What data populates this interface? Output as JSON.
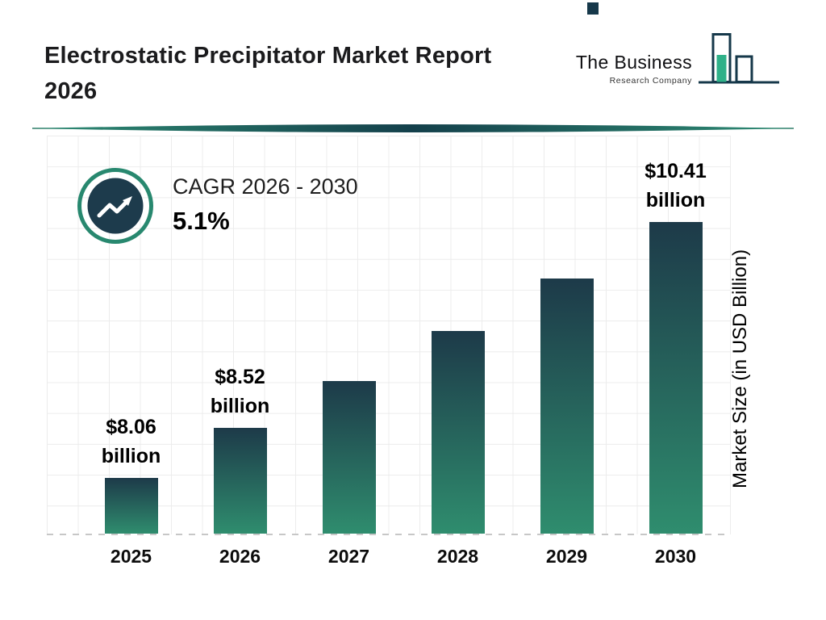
{
  "page": {
    "title": "Electrostatic Precipitator Market Report 2026",
    "title_line1": "Electrostatic Precipitator Market Report",
    "title_line2": "2026"
  },
  "logo": {
    "name": "The Business",
    "tagline": "Research Company"
  },
  "cagr": {
    "label": "CAGR 2026 - 2030",
    "value": "5.1%"
  },
  "chart_data": {
    "type": "bar",
    "categories": [
      "2025",
      "2026",
      "2027",
      "2028",
      "2029",
      "2030"
    ],
    "values": [
      8.06,
      8.52,
      8.95,
      9.41,
      9.89,
      10.41
    ],
    "value_labels": [
      {
        "amount": "$8.06",
        "unit": "billion"
      },
      {
        "amount": "$8.52",
        "unit": "billion"
      },
      null,
      null,
      null,
      {
        "amount": "$10.41",
        "unit": "billion"
      }
    ],
    "xlabel": "",
    "ylabel": "Market Size (in USD Billion)",
    "ylim": [
      7.55,
      11.2
    ],
    "grid": true,
    "legend": false,
    "colors": {
      "bar_top": "#1d3a49",
      "bar_bottom": "#2f8d6e",
      "accent_teal": "#28886f",
      "accent_navy": "#1d3b4c",
      "logo_teal": "#2fb189",
      "logo_navy": "#16384a"
    }
  }
}
